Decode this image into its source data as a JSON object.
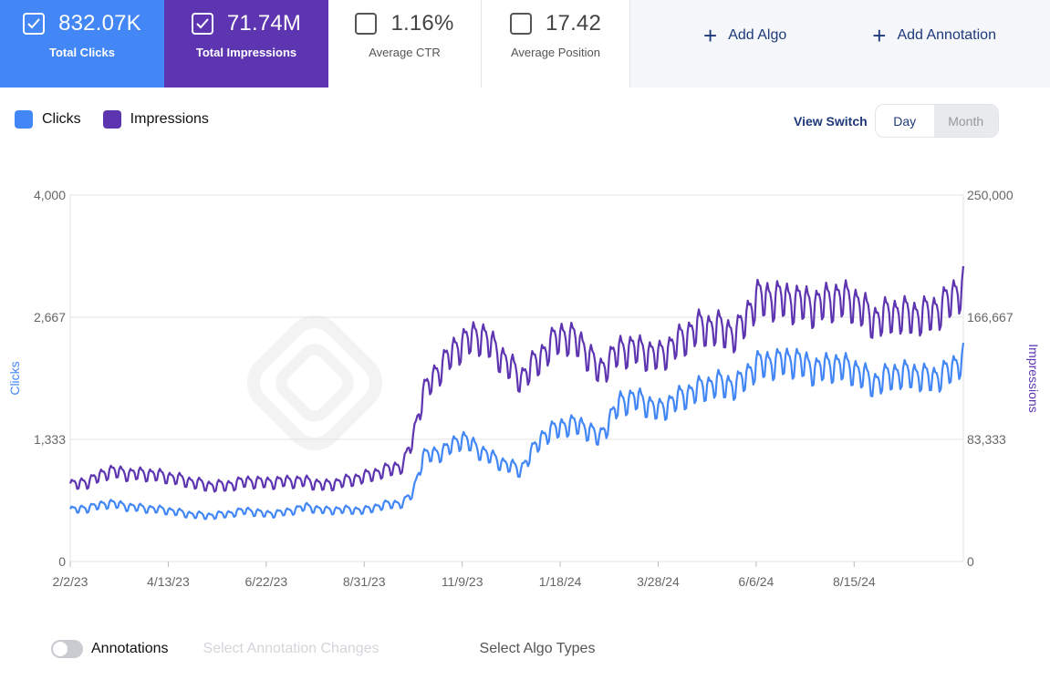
{
  "metrics": {
    "clicks": {
      "value": "832.07K",
      "label": "Total Clicks",
      "checked": true,
      "color": "#4287f5"
    },
    "impressions": {
      "value": "71.74M",
      "label": "Total Impressions",
      "checked": true,
      "color": "#5e35b1"
    },
    "ctr": {
      "value": "1.16%",
      "label": "Average CTR",
      "checked": false
    },
    "position": {
      "value": "17.42",
      "label": "Average Position",
      "checked": false
    }
  },
  "actions": {
    "add_algo": "Add Algo",
    "add_annotation": "Add Annotation"
  },
  "legend": {
    "clicks": "Clicks",
    "impressions": "Impressions"
  },
  "view_switch": {
    "label": "View Switch",
    "options": [
      "Day",
      "Month"
    ],
    "selected": "Day"
  },
  "chart_data": {
    "type": "line",
    "left_axis": {
      "title": "Clicks",
      "ticks": [
        "4,000",
        "2,667",
        "1,333",
        "0"
      ],
      "range": [
        0,
        4000
      ]
    },
    "right_axis": {
      "title": "Impressions",
      "ticks": [
        "250,000",
        "166,667",
        "83,333",
        "0"
      ],
      "range": [
        0,
        250000
      ]
    },
    "x_ticks": [
      "2/2/23",
      "4/13/23",
      "6/22/23",
      "8/31/23",
      "11/9/23",
      "1/18/24",
      "3/28/24",
      "6/6/24",
      "8/15/24"
    ],
    "x_range": [
      "2023-02-02",
      "2024-11-01"
    ],
    "grid": true,
    "series": [
      {
        "name": "Clicks",
        "axis": "left",
        "color": "#4287f5",
        "points": [
          [
            "2023-02-02",
            560
          ],
          [
            "2023-02-16",
            590
          ],
          [
            "2023-03-02",
            640
          ],
          [
            "2023-03-16",
            600
          ],
          [
            "2023-03-30",
            580
          ],
          [
            "2023-04-13",
            560
          ],
          [
            "2023-04-27",
            520
          ],
          [
            "2023-05-11",
            500
          ],
          [
            "2023-05-25",
            520
          ],
          [
            "2023-06-08",
            560
          ],
          [
            "2023-06-22",
            520
          ],
          [
            "2023-07-06",
            540
          ],
          [
            "2023-07-20",
            600
          ],
          [
            "2023-08-03",
            560
          ],
          [
            "2023-08-17",
            570
          ],
          [
            "2023-08-31",
            560
          ],
          [
            "2023-09-14",
            620
          ],
          [
            "2023-09-28",
            640
          ],
          [
            "2023-10-05",
            760
          ],
          [
            "2023-10-12",
            1150
          ],
          [
            "2023-10-26",
            1200
          ],
          [
            "2023-11-09",
            1350
          ],
          [
            "2023-11-23",
            1200
          ],
          [
            "2023-12-07",
            1080
          ],
          [
            "2023-12-21",
            1000
          ],
          [
            "2024-01-04",
            1350
          ],
          [
            "2024-01-18",
            1480
          ],
          [
            "2024-02-01",
            1500
          ],
          [
            "2024-02-15",
            1350
          ],
          [
            "2024-03-01",
            1750
          ],
          [
            "2024-03-14",
            1780
          ],
          [
            "2024-03-28",
            1650
          ],
          [
            "2024-04-11",
            1780
          ],
          [
            "2024-04-25",
            1880
          ],
          [
            "2024-05-09",
            1950
          ],
          [
            "2024-05-23",
            1920
          ],
          [
            "2024-06-06",
            2150
          ],
          [
            "2024-06-20",
            2180
          ],
          [
            "2024-07-04",
            2200
          ],
          [
            "2024-07-18",
            2100
          ],
          [
            "2024-08-01",
            2150
          ],
          [
            "2024-08-15",
            2100
          ],
          [
            "2024-08-29",
            1950
          ],
          [
            "2024-09-12",
            2050
          ],
          [
            "2024-09-26",
            2050
          ],
          [
            "2024-10-10",
            2000
          ],
          [
            "2024-10-24",
            2100
          ],
          [
            "2024-11-01",
            2250
          ]
        ]
      },
      {
        "name": "Impressions",
        "axis": "right",
        "color": "#5e35b1",
        "points": [
          [
            "2023-02-02",
            52000
          ],
          [
            "2023-02-16",
            55000
          ],
          [
            "2023-03-02",
            62000
          ],
          [
            "2023-03-16",
            60000
          ],
          [
            "2023-03-30",
            60000
          ],
          [
            "2023-04-13",
            58000
          ],
          [
            "2023-04-27",
            55000
          ],
          [
            "2023-05-11",
            52000
          ],
          [
            "2023-05-25",
            52000
          ],
          [
            "2023-06-08",
            55000
          ],
          [
            "2023-06-22",
            54000
          ],
          [
            "2023-07-06",
            55000
          ],
          [
            "2023-07-20",
            55000
          ],
          [
            "2023-08-03",
            52000
          ],
          [
            "2023-08-17",
            55000
          ],
          [
            "2023-08-31",
            58000
          ],
          [
            "2023-09-14",
            62000
          ],
          [
            "2023-09-28",
            66000
          ],
          [
            "2023-10-05",
            85000
          ],
          [
            "2023-10-12",
            115000
          ],
          [
            "2023-10-26",
            135000
          ],
          [
            "2023-11-09",
            150000
          ],
          [
            "2023-11-23",
            155000
          ],
          [
            "2023-12-07",
            140000
          ],
          [
            "2023-12-21",
            125000
          ],
          [
            "2024-01-04",
            140000
          ],
          [
            "2024-01-18",
            155000
          ],
          [
            "2024-02-01",
            150000
          ],
          [
            "2024-02-15",
            130000
          ],
          [
            "2024-03-01",
            145000
          ],
          [
            "2024-03-14",
            145000
          ],
          [
            "2024-03-28",
            140000
          ],
          [
            "2024-04-11",
            150000
          ],
          [
            "2024-04-25",
            160000
          ],
          [
            "2024-05-09",
            160000
          ],
          [
            "2024-05-23",
            155000
          ],
          [
            "2024-06-06",
            180000
          ],
          [
            "2024-06-20",
            180000
          ],
          [
            "2024-07-04",
            178000
          ],
          [
            "2024-07-18",
            175000
          ],
          [
            "2024-08-01",
            180000
          ],
          [
            "2024-08-15",
            178000
          ],
          [
            "2024-08-29",
            165000
          ],
          [
            "2024-09-12",
            170000
          ],
          [
            "2024-09-26",
            168000
          ],
          [
            "2024-10-10",
            170000
          ],
          [
            "2024-10-24",
            180000
          ],
          [
            "2024-11-01",
            190000
          ]
        ]
      }
    ]
  },
  "footer": {
    "annotations_label": "Annotations",
    "annotations_on": false,
    "select_annotation_changes": "Select Annotation Changes",
    "select_algo_types": "Select Algo Types"
  }
}
